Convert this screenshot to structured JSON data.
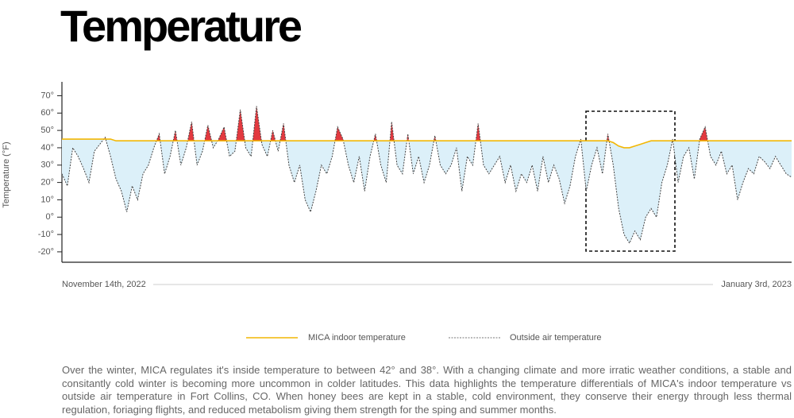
{
  "chart_data": {
    "type": "line",
    "page_title": "Temperature",
    "y_label": "Temperature (°F)",
    "description": "Over the winter, MICA regulates it's inside temperature to between 42° and 38°. With a changing climate and more irratic weather conditions, a stable and consitantly cold winter is becoming more uncommon in colder latitudes. This data highlights the temperature differentials of MICA's indoor temperature vs outside air temperature in Fort Collins, CO. When honey bees are kept in a stable, cold environment, they conserve their energy through less thermal regulation, foriaging flights, and reduced metabolism giving them strength for the sping and summer months.",
    "ylim": [
      -26,
      78
    ],
    "yticks": [
      {
        "value": -20,
        "label": "-20°"
      },
      {
        "value": -10,
        "label": "-10°"
      },
      {
        "value": 0,
        "label": "0°"
      },
      {
        "value": 10,
        "label": "10°"
      },
      {
        "value": 20,
        "label": "20°"
      },
      {
        "value": 30,
        "label": "30°"
      },
      {
        "value": 40,
        "label": "40°"
      },
      {
        "value": 50,
        "label": "50°"
      },
      {
        "value": 60,
        "label": "60°"
      },
      {
        "value": 70,
        "label": "70°"
      }
    ],
    "categories": [
      "November 14th, 2022",
      null,
      null,
      null,
      null,
      null,
      null,
      null,
      null,
      null,
      null,
      null,
      null,
      null,
      null,
      null,
      null,
      null,
      null,
      null,
      null,
      null,
      null,
      null,
      null,
      null,
      null,
      null,
      null,
      null,
      null,
      null,
      null,
      null,
      null,
      null,
      null,
      null,
      null,
      null,
      null,
      null,
      null,
      null,
      null,
      null,
      null,
      null,
      null,
      null,
      null,
      null,
      null,
      null,
      null,
      null,
      null,
      null,
      null,
      null,
      null,
      null,
      null,
      null,
      null,
      null,
      null,
      null,
      null,
      null,
      null,
      null,
      null,
      null,
      null,
      null,
      null,
      null,
      null,
      null,
      null,
      null,
      null,
      null,
      null,
      null,
      null,
      null,
      null,
      null,
      null,
      null,
      null,
      null,
      null,
      null,
      null,
      null,
      null,
      null,
      null,
      null,
      null,
      null,
      null,
      null,
      null,
      null,
      null,
      null,
      null,
      null,
      null,
      null,
      null,
      null,
      null,
      null,
      null,
      null,
      null,
      null,
      null,
      null,
      null,
      null,
      null,
      null,
      null,
      null,
      null,
      null,
      null,
      null,
      null,
      "January 3rd, 2023"
    ],
    "series": [
      {
        "name": "MICA indoor temperature",
        "color": "#f2b705",
        "above_color": "#e2393f",
        "below_color": "#dcf0f9",
        "values": [
          45,
          45,
          45,
          45,
          45,
          45,
          45,
          45,
          45,
          45,
          44,
          44,
          44,
          44,
          44,
          44,
          44,
          44,
          44,
          44,
          44,
          44,
          44,
          44,
          44,
          44,
          44,
          44,
          44,
          44,
          44,
          44,
          44,
          44,
          44,
          44,
          44,
          44,
          44,
          44,
          44,
          44,
          44,
          44,
          44,
          44,
          44,
          44,
          44,
          44,
          44,
          44,
          44,
          44,
          44,
          44,
          44,
          44,
          44,
          44,
          44,
          44,
          44,
          44,
          44,
          44,
          44,
          44,
          44,
          44,
          44,
          44,
          44,
          44,
          44,
          44,
          44,
          44,
          44,
          44,
          44,
          44,
          44,
          44,
          44,
          44,
          44,
          44,
          44,
          44,
          44,
          44,
          44,
          44,
          44,
          44,
          44,
          44,
          44,
          44,
          44,
          44,
          43,
          41,
          40,
          40,
          41,
          42,
          43,
          44,
          44,
          44,
          44,
          44,
          44,
          44,
          44,
          44,
          44,
          44,
          44,
          44,
          44,
          44,
          44,
          44,
          44,
          44,
          44,
          44,
          44,
          44,
          44,
          44,
          44,
          44
        ]
      },
      {
        "name": "Outside air temperature",
        "color": "#444444",
        "values": [
          25,
          18,
          40,
          35,
          28,
          20,
          38,
          42,
          46,
          35,
          22,
          15,
          3,
          18,
          10,
          25,
          30,
          40,
          48,
          25,
          35,
          50,
          30,
          40,
          55,
          30,
          38,
          53,
          40,
          45,
          52,
          35,
          38,
          62,
          40,
          35,
          64,
          42,
          35,
          50,
          38,
          54,
          30,
          20,
          30,
          10,
          3,
          15,
          30,
          25,
          35,
          52,
          45,
          30,
          20,
          35,
          15,
          35,
          48,
          30,
          20,
          55,
          30,
          25,
          48,
          25,
          35,
          20,
          30,
          47,
          30,
          25,
          30,
          40,
          15,
          35,
          30,
          54,
          30,
          25,
          30,
          35,
          20,
          30,
          15,
          25,
          20,
          30,
          15,
          35,
          20,
          30,
          22,
          8,
          18,
          35,
          45,
          15,
          30,
          40,
          25,
          48,
          30,
          5,
          -10,
          -15,
          -8,
          -13,
          0,
          5,
          0,
          20,
          30,
          45,
          20,
          35,
          40,
          22,
          45,
          52,
          35,
          30,
          38,
          25,
          30,
          10,
          20,
          28,
          25,
          35,
          32,
          28,
          35,
          30,
          25,
          23
        ]
      }
    ]
  }
}
